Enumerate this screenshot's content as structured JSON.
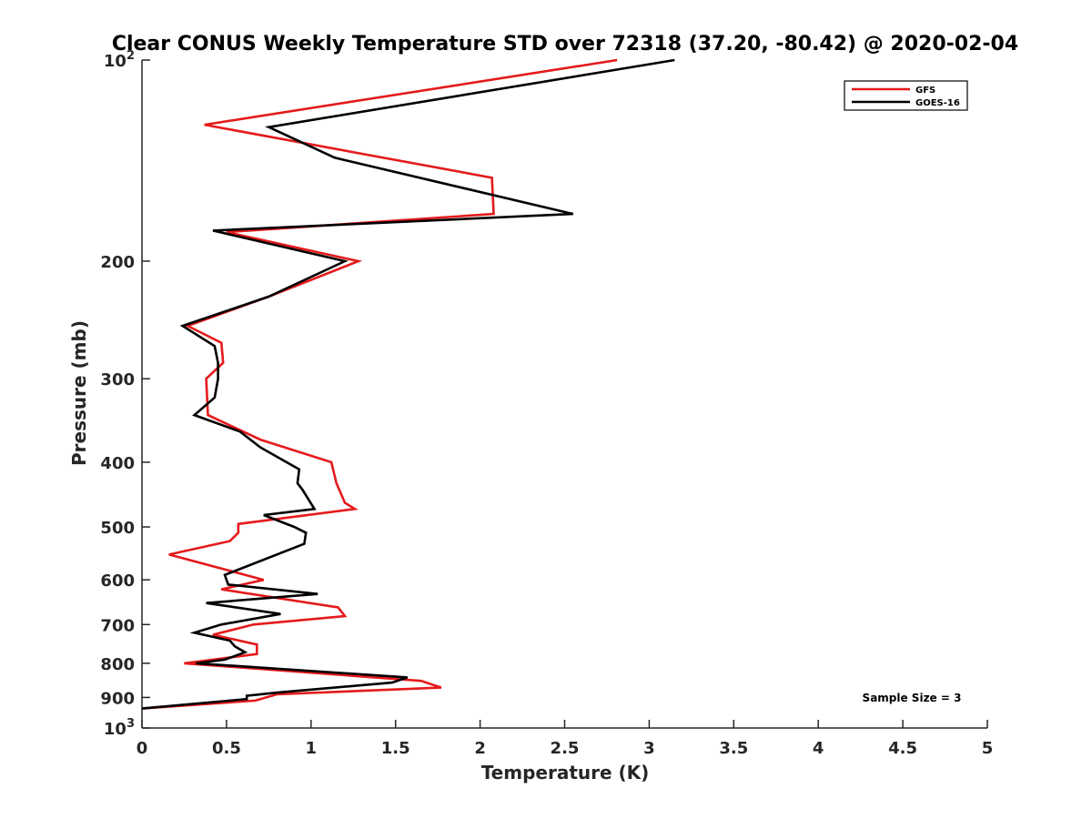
{
  "chart_data": {
    "type": "line",
    "title": "Clear CONUS Weekly Temperature STD over 72318 (37.20, -80.42) @ 2020-02-04",
    "xlabel": "Temperature (K)",
    "ylabel": "Pressure (mb)",
    "xlim": [
      0,
      5
    ],
    "ylim": [
      1000,
      100
    ],
    "y_scale": "log",
    "y_reversed": true,
    "grid": false,
    "legend_position": "top-right",
    "x_ticks": [
      0,
      0.5,
      1,
      1.5,
      2,
      2.5,
      3,
      3.5,
      4,
      4.5,
      5
    ],
    "x_tick_labels": [
      "0",
      "0.5",
      "1",
      "1.5",
      "2",
      "2.5",
      "3",
      "3.5",
      "4",
      "4.5",
      "5"
    ],
    "y_ticks": [
      100,
      200,
      300,
      400,
      500,
      600,
      700,
      800,
      900,
      1000
    ],
    "y_tick_labels": [
      {
        "base": "10",
        "exp": "2"
      },
      {
        "base": "200",
        "exp": ""
      },
      {
        "base": "300",
        "exp": ""
      },
      {
        "base": "400",
        "exp": ""
      },
      {
        "base": "500",
        "exp": ""
      },
      {
        "base": "600",
        "exp": ""
      },
      {
        "base": "700",
        "exp": ""
      },
      {
        "base": "800",
        "exp": ""
      },
      {
        "base": "900",
        "exp": ""
      },
      {
        "base": "10",
        "exp": "3"
      }
    ],
    "annotation": "Sample Size = 3",
    "series": [
      {
        "name": "GFS",
        "color": "#e41a1c",
        "points": [
          [
            2.81,
            100
          ],
          [
            0.37,
            125
          ],
          [
            2.07,
            150
          ],
          [
            2.08,
            170
          ],
          [
            0.5,
            181
          ],
          [
            1.28,
            200
          ],
          [
            0.75,
            226
          ],
          [
            0.27,
            250
          ],
          [
            0.47,
            265
          ],
          [
            0.48,
            284
          ],
          [
            0.38,
            300
          ],
          [
            0.39,
            340
          ],
          [
            0.7,
            370
          ],
          [
            1.12,
            400
          ],
          [
            1.15,
            430
          ],
          [
            1.2,
            460
          ],
          [
            1.26,
            470
          ],
          [
            0.57,
            495
          ],
          [
            0.57,
            510
          ],
          [
            0.52,
            525
          ],
          [
            0.16,
            550
          ],
          [
            0.72,
            600
          ],
          [
            0.47,
            620
          ],
          [
            1.16,
            660
          ],
          [
            1.2,
            680
          ],
          [
            0.66,
            700
          ],
          [
            0.42,
            725
          ],
          [
            0.68,
            750
          ],
          [
            0.68,
            775
          ],
          [
            0.25,
            800
          ],
          [
            1.65,
            850
          ],
          [
            1.77,
            870
          ],
          [
            0.8,
            890
          ],
          [
            0.67,
            910
          ],
          [
            0.0,
            935
          ]
        ]
      },
      {
        "name": "GOES-16",
        "color": "#000000",
        "points": [
          [
            3.15,
            100
          ],
          [
            0.75,
            126
          ],
          [
            1.14,
            140
          ],
          [
            2.55,
            170
          ],
          [
            0.42,
            180
          ],
          [
            1.2,
            200
          ],
          [
            0.75,
            226
          ],
          [
            0.24,
            250
          ],
          [
            0.43,
            268
          ],
          [
            0.45,
            284
          ],
          [
            0.45,
            300
          ],
          [
            0.43,
            320
          ],
          [
            0.31,
            340
          ],
          [
            0.58,
            360
          ],
          [
            0.7,
            380
          ],
          [
            0.93,
            410
          ],
          [
            0.92,
            430
          ],
          [
            0.95,
            440
          ],
          [
            1.02,
            470
          ],
          [
            0.72,
            480
          ],
          [
            0.9,
            500
          ],
          [
            0.97,
            510
          ],
          [
            0.96,
            530
          ],
          [
            0.49,
            590
          ],
          [
            0.51,
            610
          ],
          [
            1.04,
            630
          ],
          [
            0.38,
            650
          ],
          [
            0.82,
            675
          ],
          [
            0.47,
            700
          ],
          [
            0.31,
            720
          ],
          [
            0.52,
            740
          ],
          [
            0.55,
            755
          ],
          [
            0.61,
            770
          ],
          [
            0.49,
            790
          ],
          [
            0.32,
            800
          ],
          [
            1.57,
            840
          ],
          [
            1.48,
            855
          ],
          [
            0.8,
            885
          ],
          [
            0.62,
            895
          ],
          [
            0.62,
            905
          ],
          [
            0.0,
            935
          ]
        ]
      }
    ]
  }
}
